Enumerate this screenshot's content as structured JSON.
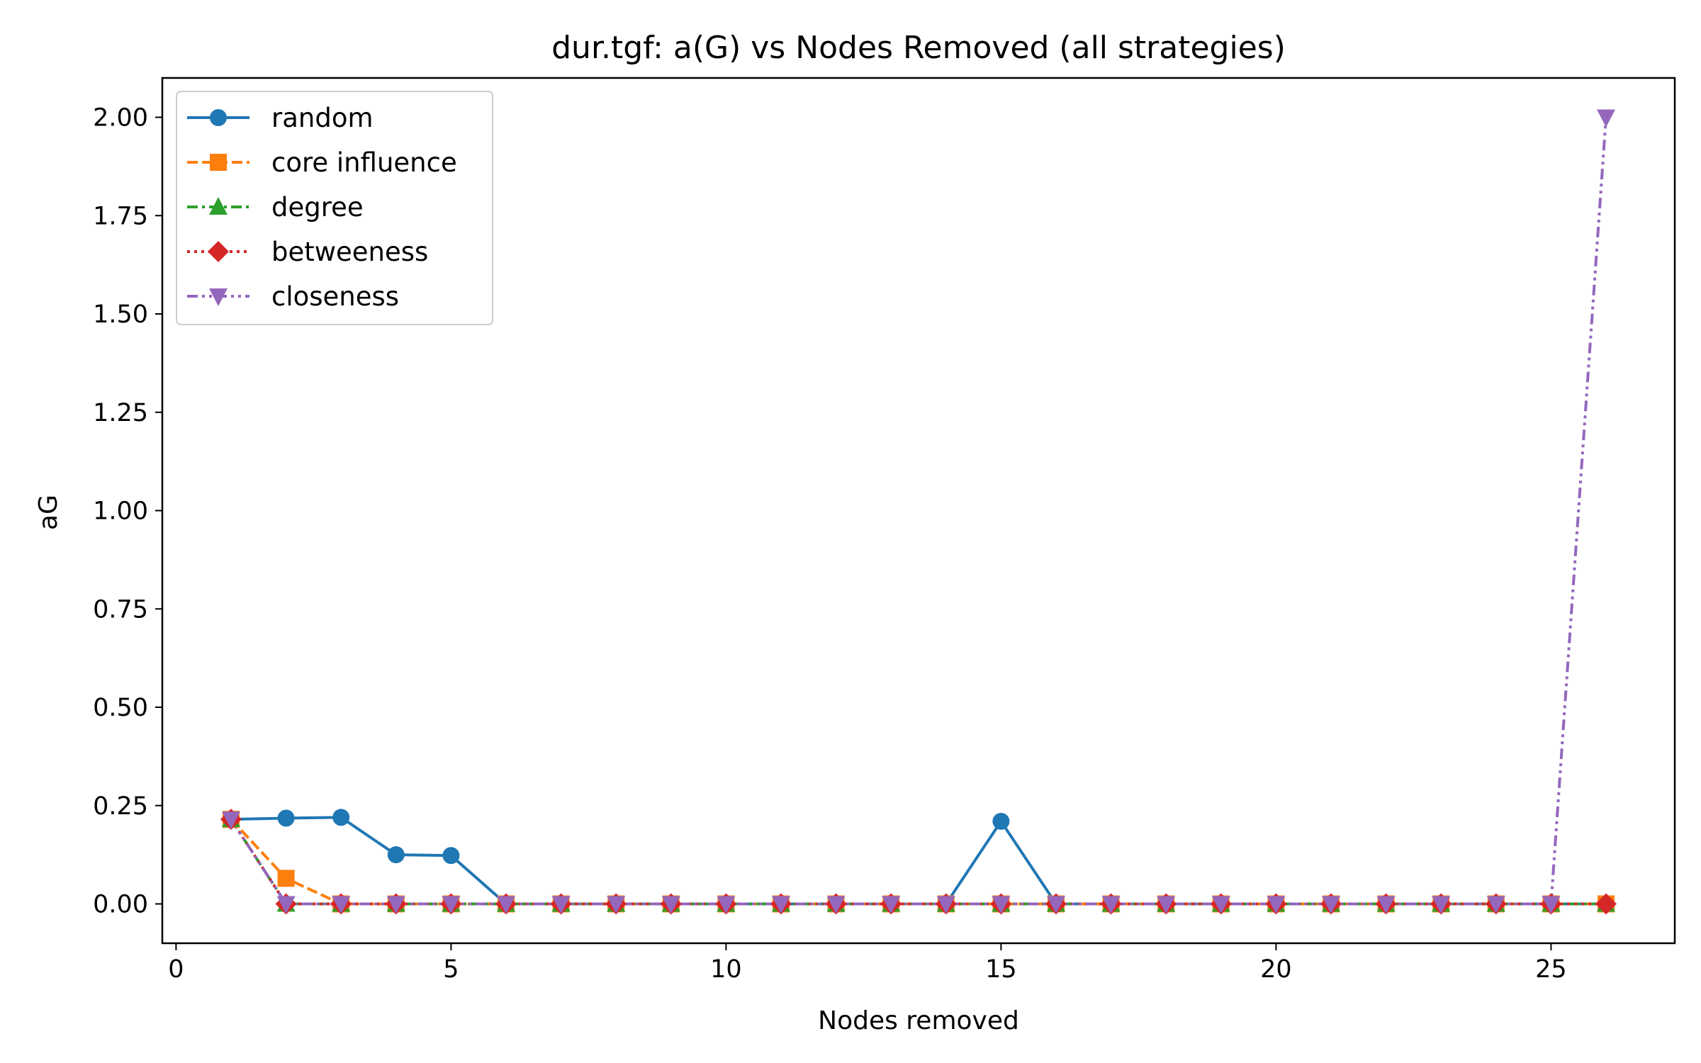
{
  "chart_data": {
    "type": "line",
    "title": "dur.tgf: a(G) vs Nodes Removed (all strategies)",
    "xlabel": "Nodes removed",
    "ylabel": "aG",
    "xlim": [
      -0.25,
      27.25
    ],
    "ylim": [
      -0.1,
      2.1
    ],
    "xticks": [
      0,
      5,
      10,
      15,
      20,
      25
    ],
    "yticks": [
      0.0,
      0.25,
      0.5,
      0.75,
      1.0,
      1.25,
      1.5,
      1.75,
      2.0
    ],
    "xtick_labels": [
      "0",
      "5",
      "10",
      "15",
      "20",
      "25"
    ],
    "ytick_labels": [
      "0.00",
      "0.25",
      "0.50",
      "0.75",
      "1.00",
      "1.25",
      "1.50",
      "1.75",
      "2.00"
    ],
    "grid": false,
    "legend_position": "top-left",
    "x": [
      1,
      2,
      3,
      4,
      5,
      6,
      7,
      8,
      9,
      10,
      11,
      12,
      13,
      14,
      15,
      16,
      17,
      18,
      19,
      20,
      21,
      22,
      23,
      24,
      25,
      26
    ],
    "series": [
      {
        "name": "random",
        "color": "#1f77b4",
        "marker": "circle",
        "linestyle": "solid",
        "values": [
          0.215,
          0.218,
          0.22,
          0.125,
          0.123,
          0,
          0,
          0,
          0,
          0,
          0,
          0,
          0,
          0,
          0.21,
          0,
          0,
          0,
          0,
          0,
          0,
          0,
          0,
          0,
          0,
          0
        ]
      },
      {
        "name": "core influence",
        "color": "#ff7f0e",
        "marker": "square",
        "linestyle": "dashed",
        "values": [
          0.215,
          0.065,
          0,
          0,
          0,
          0,
          0,
          0,
          0,
          0,
          0,
          0,
          0,
          0,
          0,
          0,
          0,
          0,
          0,
          0,
          0,
          0,
          0,
          0,
          0,
          0
        ]
      },
      {
        "name": "degree",
        "color": "#2ca02c",
        "marker": "triangle-up",
        "linestyle": "dashdot",
        "values": [
          0.215,
          0,
          0,
          0,
          0,
          0,
          0,
          0,
          0,
          0,
          0,
          0,
          0,
          0,
          0,
          0,
          0,
          0,
          0,
          0,
          0,
          0,
          0,
          0,
          0,
          0
        ]
      },
      {
        "name": "betweeness",
        "color": "#d62728",
        "marker": "diamond",
        "linestyle": "dotted",
        "values": [
          0.215,
          0,
          0,
          0,
          0,
          0,
          0,
          0,
          0,
          0,
          0,
          0,
          0,
          0,
          0,
          0,
          0,
          0,
          0,
          0,
          0,
          0,
          0,
          0,
          0,
          0
        ]
      },
      {
        "name": "closeness",
        "color": "#9467bd",
        "marker": "triangle-down",
        "linestyle": "dashdotdot",
        "values": [
          0.215,
          0,
          0,
          0,
          0,
          0,
          0,
          0,
          0,
          0,
          0,
          0,
          0,
          0,
          0,
          0,
          0,
          0,
          0,
          0,
          0,
          0,
          0,
          0,
          0,
          2.0
        ]
      }
    ]
  }
}
